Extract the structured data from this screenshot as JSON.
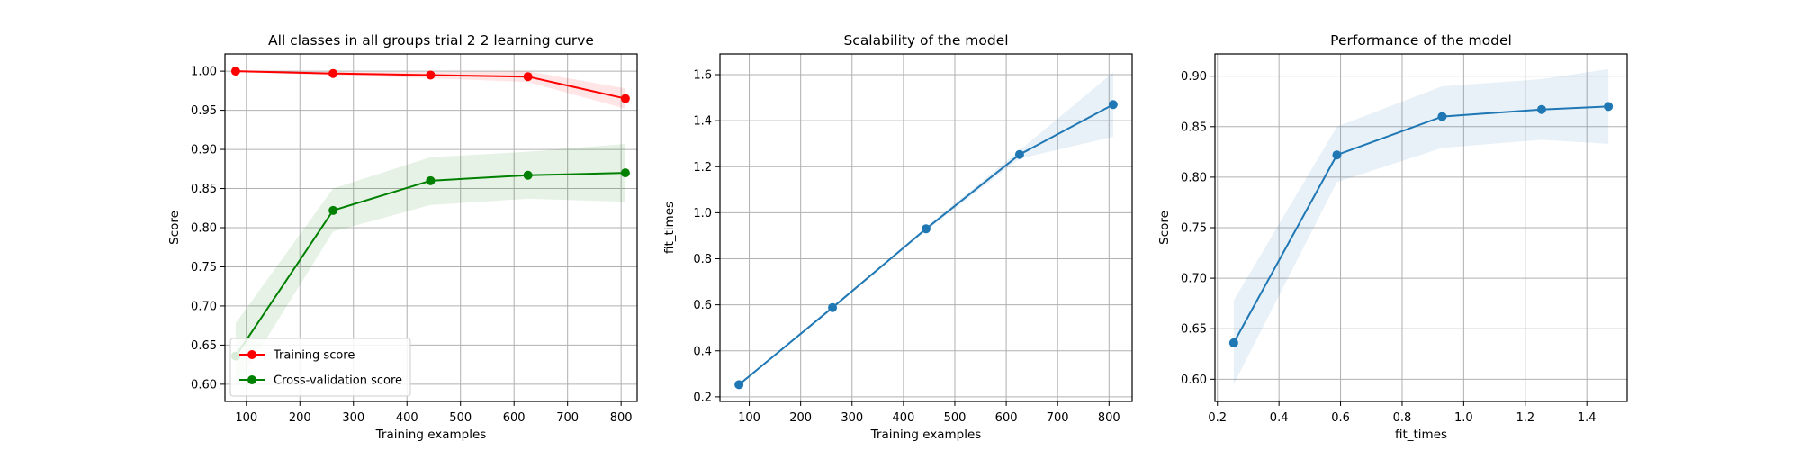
{
  "chart_data": [
    {
      "type": "line",
      "title": "All classes in all groups trial 2 2 learning curve",
      "xlabel": "Training examples",
      "ylabel": "Score",
      "xlim": [
        60,
        830
      ],
      "ylim": [
        0.578,
        1.022
      ],
      "xticks": [
        100,
        200,
        300,
        400,
        500,
        600,
        700,
        800
      ],
      "yticks": [
        0.6,
        0.65,
        0.7,
        0.75,
        0.8,
        0.85,
        0.9,
        0.95,
        1.0
      ],
      "x_decimals": 0,
      "y_decimals": 2,
      "grid": true,
      "legend": "lower-left",
      "x": [
        80,
        262,
        444,
        626,
        808
      ],
      "series": [
        {
          "name": "Training score",
          "color": "#ff0000",
          "values": [
            1.0,
            0.997,
            0.995,
            0.993,
            0.965
          ],
          "band_lower": [
            0.999,
            0.995,
            0.991,
            0.986,
            0.952
          ],
          "band_upper": [
            1.001,
            0.999,
            0.999,
            1.0,
            0.978
          ]
        },
        {
          "name": "Cross-validation score",
          "color": "#008000",
          "values": [
            0.636,
            0.822,
            0.86,
            0.867,
            0.87
          ],
          "band_lower": [
            0.595,
            0.795,
            0.829,
            0.837,
            0.833
          ],
          "band_upper": [
            0.678,
            0.85,
            0.89,
            0.897,
            0.907
          ]
        }
      ]
    },
    {
      "type": "line",
      "title": "Scalability of the model",
      "xlabel": "Training examples",
      "ylabel": "fit_times",
      "xlim": [
        43,
        845
      ],
      "ylim": [
        0.18,
        1.69
      ],
      "xticks": [
        100,
        200,
        300,
        400,
        500,
        600,
        700,
        800
      ],
      "yticks": [
        0.2,
        0.4,
        0.6,
        0.8,
        1.0,
        1.2,
        1.4,
        1.6
      ],
      "x_decimals": 0,
      "y_decimals": 1,
      "grid": true,
      "x": [
        80,
        262,
        444,
        626,
        808
      ],
      "series": [
        {
          "color": "#1f77b4",
          "values": [
            0.253,
            0.588,
            0.93,
            1.253,
            1.47
          ],
          "band_lower": [
            0.248,
            0.582,
            0.922,
            1.235,
            1.33
          ],
          "band_upper": [
            0.258,
            0.594,
            0.938,
            1.271,
            1.61
          ]
        }
      ]
    },
    {
      "type": "line",
      "title": "Performance of the model",
      "xlabel": "fit_times",
      "ylabel": "Score",
      "xlim": [
        0.192,
        1.531
      ],
      "ylim": [
        0.578,
        0.922
      ],
      "xticks": [
        0.2,
        0.4,
        0.6,
        0.8,
        1.0,
        1.2,
        1.4
      ],
      "yticks": [
        0.6,
        0.65,
        0.7,
        0.75,
        0.8,
        0.85,
        0.9
      ],
      "x_decimals": 1,
      "y_decimals": 2,
      "grid": true,
      "x": [
        0.253,
        0.588,
        0.93,
        1.253,
        1.47
      ],
      "series": [
        {
          "color": "#1f77b4",
          "values": [
            0.636,
            0.822,
            0.86,
            0.867,
            0.87
          ],
          "band_lower": [
            0.595,
            0.795,
            0.829,
            0.837,
            0.833
          ],
          "band_upper": [
            0.678,
            0.85,
            0.89,
            0.897,
            0.907
          ]
        }
      ]
    }
  ]
}
